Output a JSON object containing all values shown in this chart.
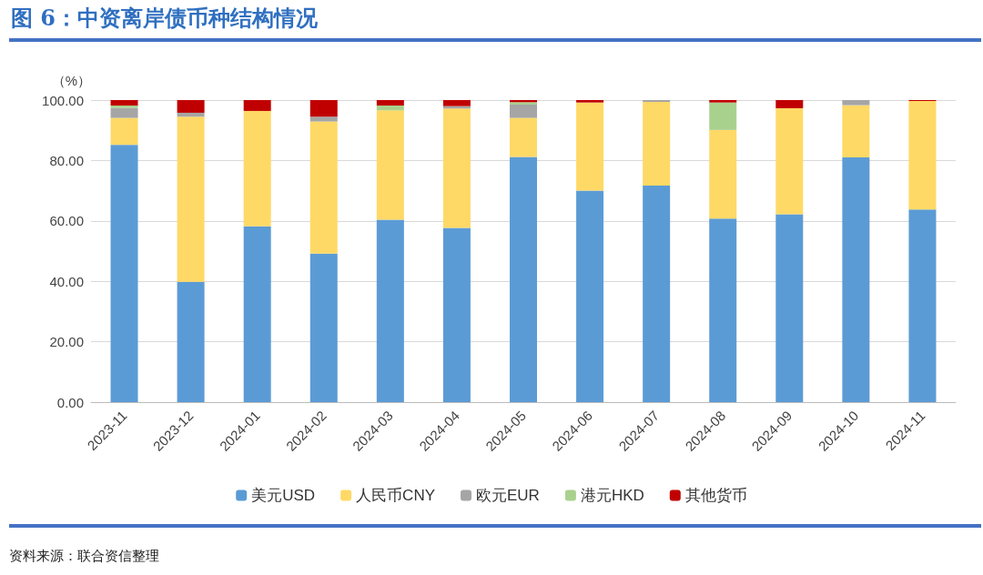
{
  "chart_data": {
    "type": "bar",
    "title": "图 6：中资离岸债币种结构情况",
    "ylabel": "（%）",
    "annotations": [
      "资料来源：联合资信整理"
    ],
    "categories": [
      "2023-11",
      "2023-12",
      "2024-01",
      "2024-02",
      "2024-03",
      "2024-04",
      "2024-05",
      "2024-06",
      "2024-07",
      "2024-08",
      "2024-09",
      "2024-10",
      "2024-11"
    ],
    "stacked": true,
    "series": [
      {
        "name": "美元USD",
        "color": "#5b9bd5",
        "values": [
          85.2,
          39.8,
          58.2,
          49.2,
          60.4,
          57.7,
          81.2,
          70.0,
          71.7,
          60.8,
          62.2,
          81.0,
          63.8
        ]
      },
      {
        "name": "人民币CNY",
        "color": "#ffd966",
        "values": [
          8.9,
          54.7,
          38.2,
          43.7,
          36.2,
          39.5,
          12.9,
          29.2,
          27.7,
          29.3,
          35.1,
          17.3,
          35.9
        ]
      },
      {
        "name": "欧元EUR",
        "color": "#a5a5a5",
        "values": [
          3.3,
          1.3,
          0,
          1.6,
          0,
          0.8,
          4.4,
          0,
          0.6,
          0,
          0,
          1.7,
          0
        ]
      },
      {
        "name": "港元HKD",
        "color": "#a9d18e",
        "values": [
          0.8,
          0,
          0,
          0,
          1.6,
          0,
          0.8,
          0,
          0,
          9.1,
          0,
          0,
          0
        ]
      },
      {
        "name": "其他货币",
        "color": "#c00000",
        "values": [
          1.8,
          4.2,
          3.6,
          5.5,
          1.8,
          2.0,
          0.7,
          0.8,
          0,
          0.8,
          2.7,
          0,
          0.3
        ]
      }
    ],
    "ylim": [
      0,
      100
    ],
    "yticks": [
      {
        "value": 0,
        "label": "0.00"
      },
      {
        "value": 20,
        "label": "20.00"
      },
      {
        "value": 40,
        "label": "40.00"
      },
      {
        "value": 60,
        "label": "60.00"
      },
      {
        "value": 80,
        "label": "80.00"
      },
      {
        "value": 100,
        "label": "100.00"
      }
    ],
    "grid": "y",
    "legend": "bottom"
  }
}
